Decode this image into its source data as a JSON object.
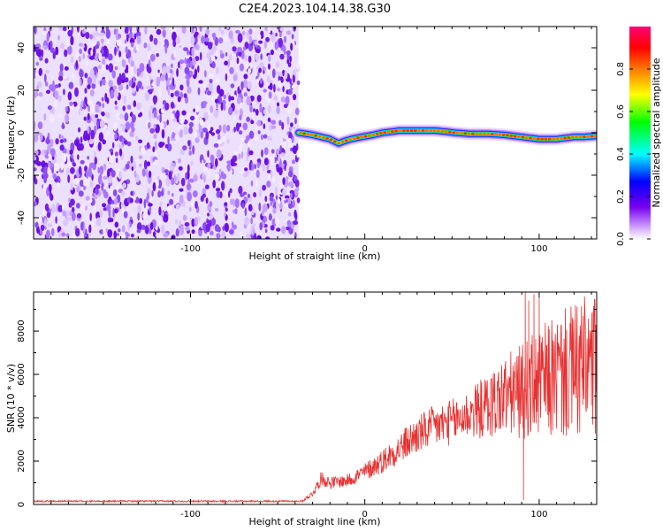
{
  "title": "C2E4.2023.104.14.38.G30",
  "chart_data": [
    {
      "type": "heatmap",
      "xlabel": "Height of straight line (km)",
      "ylabel": "Frequency (Hz)",
      "xlim": [
        -190,
        133
      ],
      "ylim": [
        -50,
        50
      ],
      "xticks": [
        -100,
        0,
        100
      ],
      "yticks": [
        -40,
        -20,
        0,
        20,
        40
      ],
      "noise_region_x": [
        -190,
        -38
      ],
      "ridge": {
        "x": [
          -38,
          -30,
          -25,
          -20,
          -15,
          -12,
          -8,
          -2,
          5,
          10,
          20,
          30,
          40,
          47,
          52,
          60,
          70,
          80,
          90,
          95,
          100,
          110,
          115,
          120,
          125,
          133
        ],
        "y": [
          0,
          -1,
          -2,
          -3,
          -5,
          -4,
          -3,
          -2,
          -1,
          0,
          1,
          1,
          1,
          0.5,
          0,
          -0.5,
          -0.5,
          -1,
          -2,
          -2.5,
          -3,
          -3,
          -2.5,
          -2,
          -2,
          -1.5
        ]
      },
      "colorbar": {
        "label": "Normalized spectral amplitude",
        "range": [
          0,
          1
        ],
        "ticks": [
          "0.0",
          "0.2",
          "0.4",
          "0.6",
          "0.8"
        ]
      }
    },
    {
      "type": "line",
      "xlabel": "Height of straight line (km)",
      "ylabel": "SNR (10 * v/v)",
      "xlim": [
        -190,
        133
      ],
      "ylim": [
        0,
        9800
      ],
      "xticks": [
        -100,
        0,
        100
      ],
      "yticks": [
        0,
        2000,
        4000,
        6000,
        8000
      ],
      "series": [
        {
          "color": "#e83030",
          "trend_x": [
            -190,
            -36,
            -30,
            -25,
            -20,
            -10,
            0,
            10,
            20,
            30,
            40,
            50,
            60,
            70,
            80,
            90,
            95,
            100,
            110,
            120,
            133
          ],
          "trend_y": [
            150,
            150,
            500,
            1200,
            1000,
            1100,
            1500,
            2000,
            2600,
            3200,
            3600,
            3800,
            4200,
            4500,
            5000,
            5200,
            5400,
            5600,
            5900,
            6100,
            6400
          ],
          "peak_x": [
            92,
            94,
            97,
            100
          ],
          "peak_y": [
            9800,
            9400,
            9700,
            9600
          ],
          "dip_x": [
            91
          ],
          "dip_y": [
            200
          ]
        }
      ]
    }
  ]
}
